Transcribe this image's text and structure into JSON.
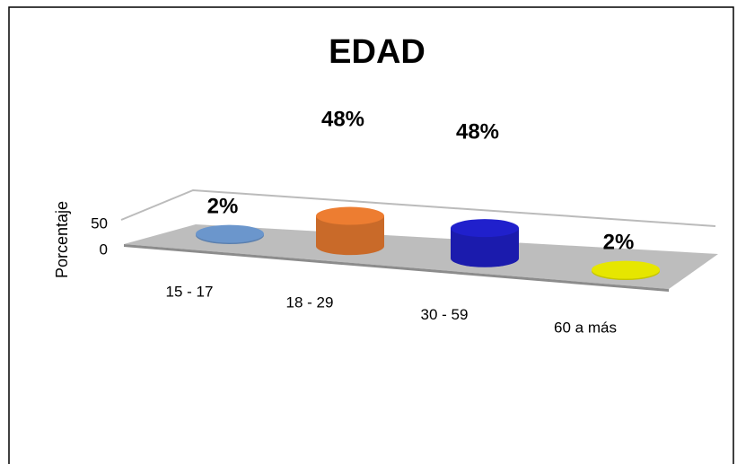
{
  "chart_data": {
    "type": "cylinder",
    "title": "EDAD",
    "y_label": "Porcentaje",
    "categories": [
      "15 - 17",
      "18 - 29",
      "30 - 59",
      "60  a más"
    ],
    "values": [
      2,
      48,
      48,
      2
    ],
    "value_labels": [
      "2%",
      "48%",
      "48%",
      "2%"
    ],
    "colors": [
      "#6b96cc",
      "#ed7d31",
      "#2020cc",
      "#e6e600"
    ],
    "ylim": [
      0,
      50
    ],
    "yticks": [
      0,
      50
    ]
  }
}
